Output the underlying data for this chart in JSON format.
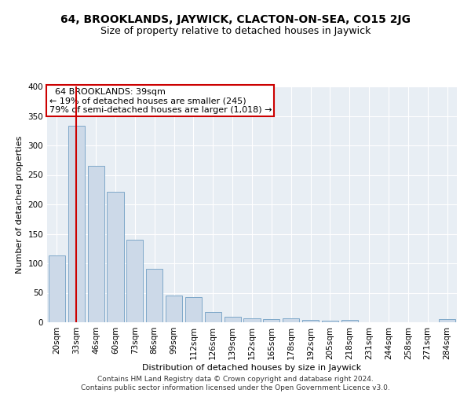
{
  "title": "64, BROOKLANDS, JAYWICK, CLACTON-ON-SEA, CO15 2JG",
  "subtitle": "Size of property relative to detached houses in Jaywick",
  "xlabel": "Distribution of detached houses by size in Jaywick",
  "ylabel": "Number of detached properties",
  "categories": [
    "20sqm",
    "33sqm",
    "46sqm",
    "60sqm",
    "73sqm",
    "86sqm",
    "99sqm",
    "112sqm",
    "126sqm",
    "139sqm",
    "152sqm",
    "165sqm",
    "178sqm",
    "192sqm",
    "205sqm",
    "218sqm",
    "231sqm",
    "244sqm",
    "258sqm",
    "271sqm",
    "284sqm"
  ],
  "values": [
    114,
    333,
    265,
    222,
    140,
    91,
    46,
    43,
    17,
    9,
    7,
    5,
    7,
    4,
    3,
    4,
    0,
    0,
    0,
    0,
    5
  ],
  "bar_color": "#ccd9e8",
  "bar_edge_color": "#7fa8c9",
  "highlight_index": 1,
  "highlight_line_color": "#cc0000",
  "annotation_text": "  64 BROOKLANDS: 39sqm  \n← 19% of detached houses are smaller (245)\n79% of semi-detached houses are larger (1,018) →",
  "annotation_box_color": "#ffffff",
  "annotation_box_edge": "#cc0000",
  "ylim": [
    0,
    400
  ],
  "yticks": [
    0,
    50,
    100,
    150,
    200,
    250,
    300,
    350,
    400
  ],
  "background_color": "#e8eef4",
  "footer_text": "Contains HM Land Registry data © Crown copyright and database right 2024.\nContains public sector information licensed under the Open Government Licence v3.0.",
  "title_fontsize": 10,
  "subtitle_fontsize": 9,
  "axis_label_fontsize": 8,
  "tick_fontsize": 7.5,
  "annotation_fontsize": 8,
  "footer_fontsize": 6.5
}
